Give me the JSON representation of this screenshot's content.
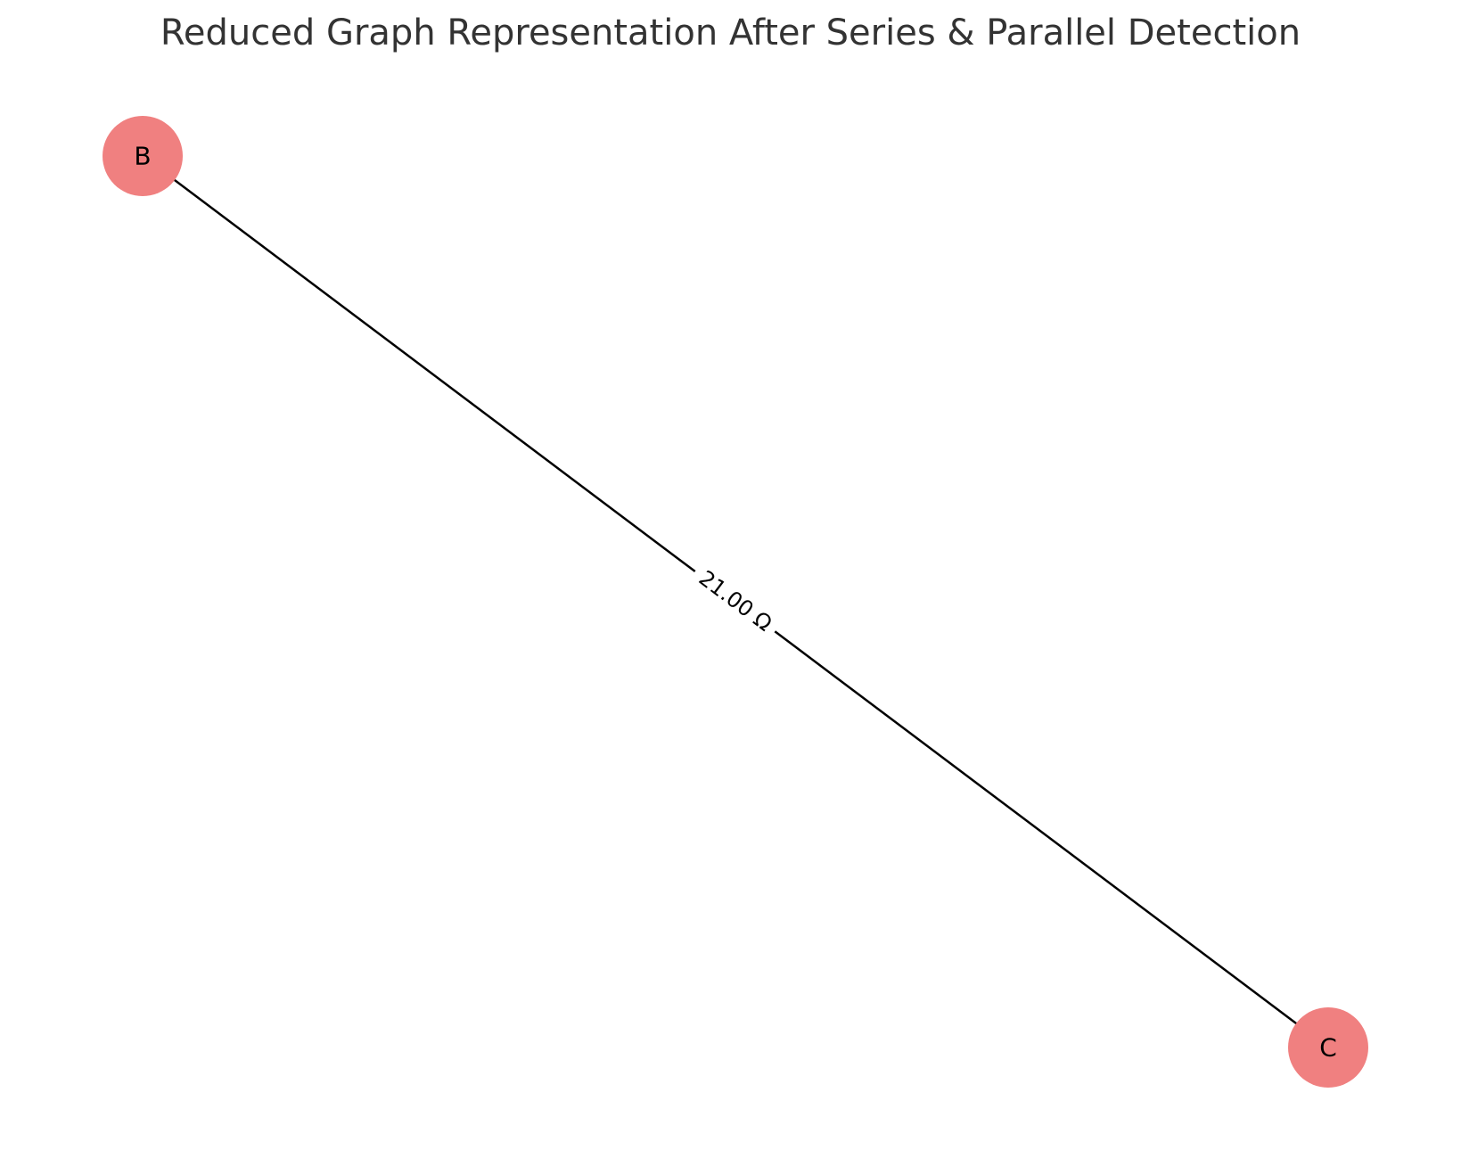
{
  "title": "Reduced Graph Representation After Series & Parallel Detection",
  "colors": {
    "node_fill": "#f08080",
    "edge": "#000000",
    "title": "#333333",
    "background": "#ffffff"
  },
  "graph": {
    "nodes": [
      {
        "id": "B",
        "label": "B"
      },
      {
        "id": "C",
        "label": "C"
      }
    ],
    "edges": [
      {
        "source": "B",
        "target": "C",
        "label": "21.00 Ω"
      }
    ]
  }
}
